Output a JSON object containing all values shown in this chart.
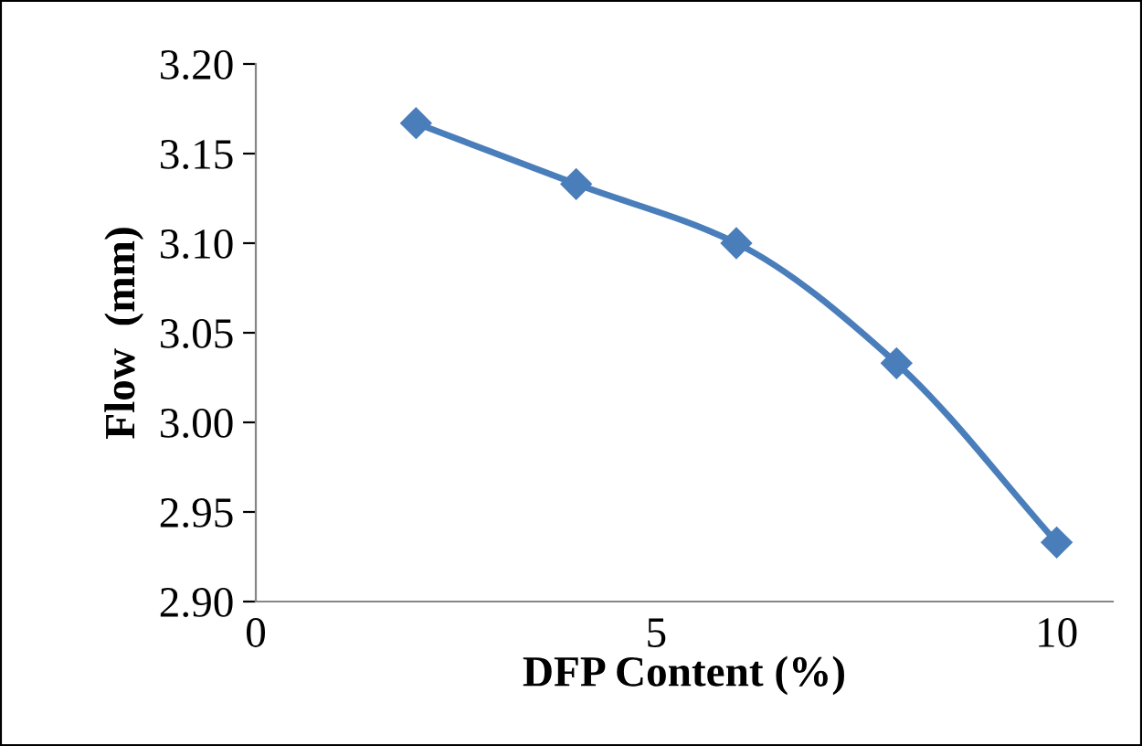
{
  "chart_data": {
    "type": "line",
    "xlabel": "DFP Content (%)",
    "ylabel": "Flow  (mm)",
    "x": [
      2,
      4,
      6,
      8,
      10
    ],
    "series": [
      {
        "color": "#4a7ebb",
        "values": [
          3.167,
          3.133,
          3.1,
          3.033,
          2.933
        ]
      }
    ],
    "xlim": [
      0,
      10.7
    ],
    "xticks": [
      0,
      5,
      10
    ],
    "ylim": [
      2.9,
      3.2
    ],
    "yticks": [
      {
        "value": 2.9,
        "label": "2.90"
      },
      {
        "value": 2.95,
        "label": "2.95"
      },
      {
        "value": 3.0,
        "label": "3.00"
      },
      {
        "value": 3.05,
        "label": "3.05"
      },
      {
        "value": 3.1,
        "label": "3.10"
      },
      {
        "value": 3.15,
        "label": "3.15"
      },
      {
        "value": 3.2,
        "label": "3.20"
      }
    ],
    "grid": false,
    "legend": false,
    "marker": "diamond",
    "line_style": "solid"
  }
}
